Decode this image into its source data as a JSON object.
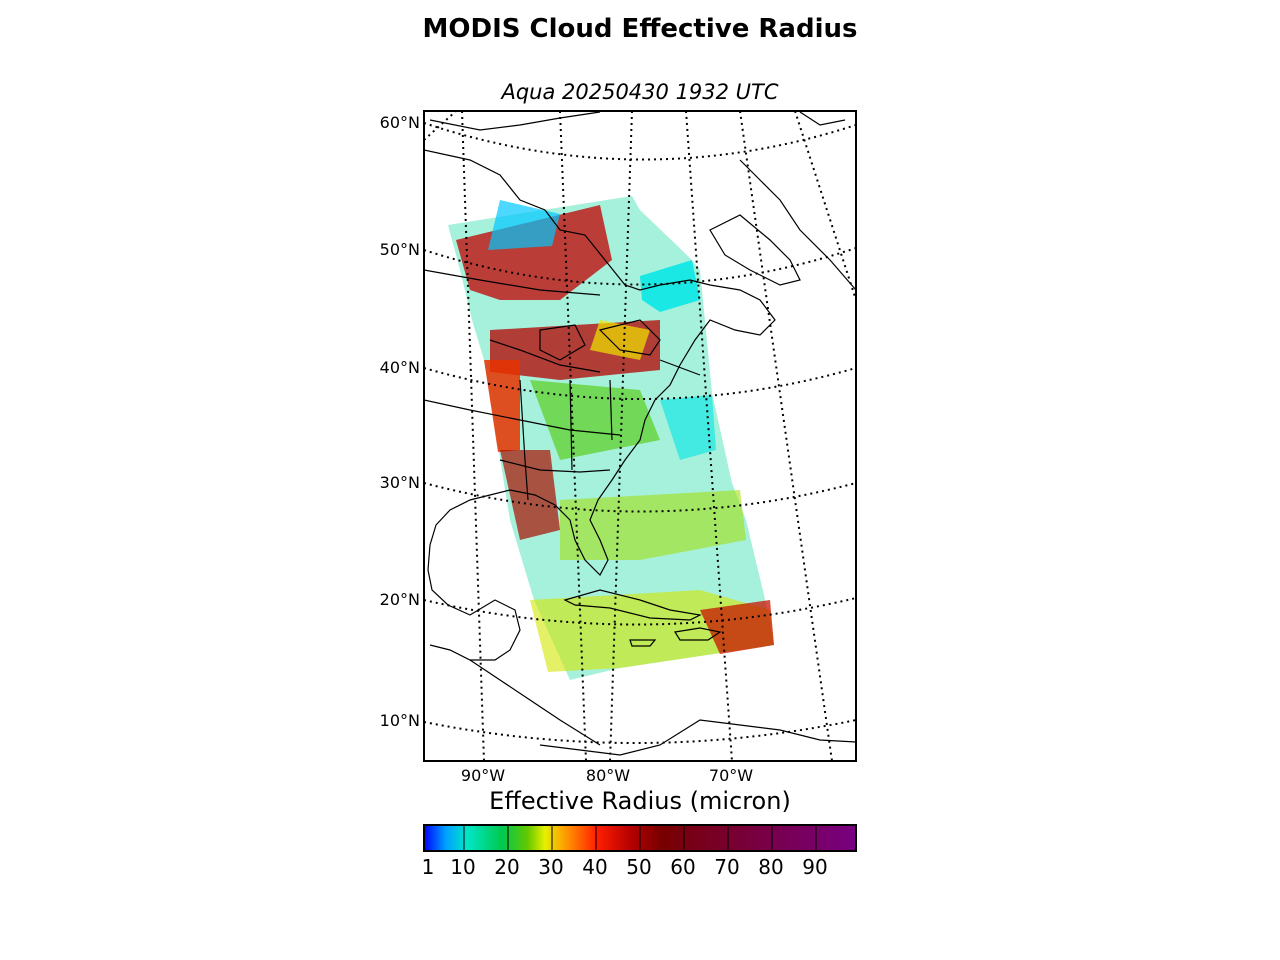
{
  "title": "MODIS Cloud Effective Radius",
  "subtitle": "Aqua 20250430 1932 UTC",
  "map": {
    "latitude_labels": [
      {
        "label": "60°N",
        "value": 60
      },
      {
        "label": "50°N",
        "value": 50
      },
      {
        "label": "40°N",
        "value": 40
      },
      {
        "label": "30°N",
        "value": 30
      },
      {
        "label": "20°N",
        "value": 20
      },
      {
        "label": "10°N",
        "value": 10
      }
    ],
    "longitude_labels": [
      {
        "label": "90°W",
        "value": -90
      },
      {
        "label": "80°W",
        "value": -80
      },
      {
        "label": "70°W",
        "value": -70
      }
    ],
    "graticule_style": "dotted",
    "land_color": "#ffffff",
    "coastline_color": "#000000"
  },
  "colorbar": {
    "title": "Effective Radius (micron)",
    "ticks": [
      "1",
      "10",
      "20",
      "30",
      "40",
      "50",
      "60",
      "70",
      "80",
      "90"
    ],
    "range": [
      1,
      100
    ],
    "colors": [
      "#0000ff",
      "#00b4ff",
      "#00e6c8",
      "#00c864",
      "#19b400",
      "#96dc00",
      "#fff000",
      "#ffa000",
      "#ff3c00",
      "#dc0000",
      "#a00000",
      "#780000",
      "#780014",
      "#78002d",
      "#780046",
      "#780064",
      "#780082"
    ]
  }
}
